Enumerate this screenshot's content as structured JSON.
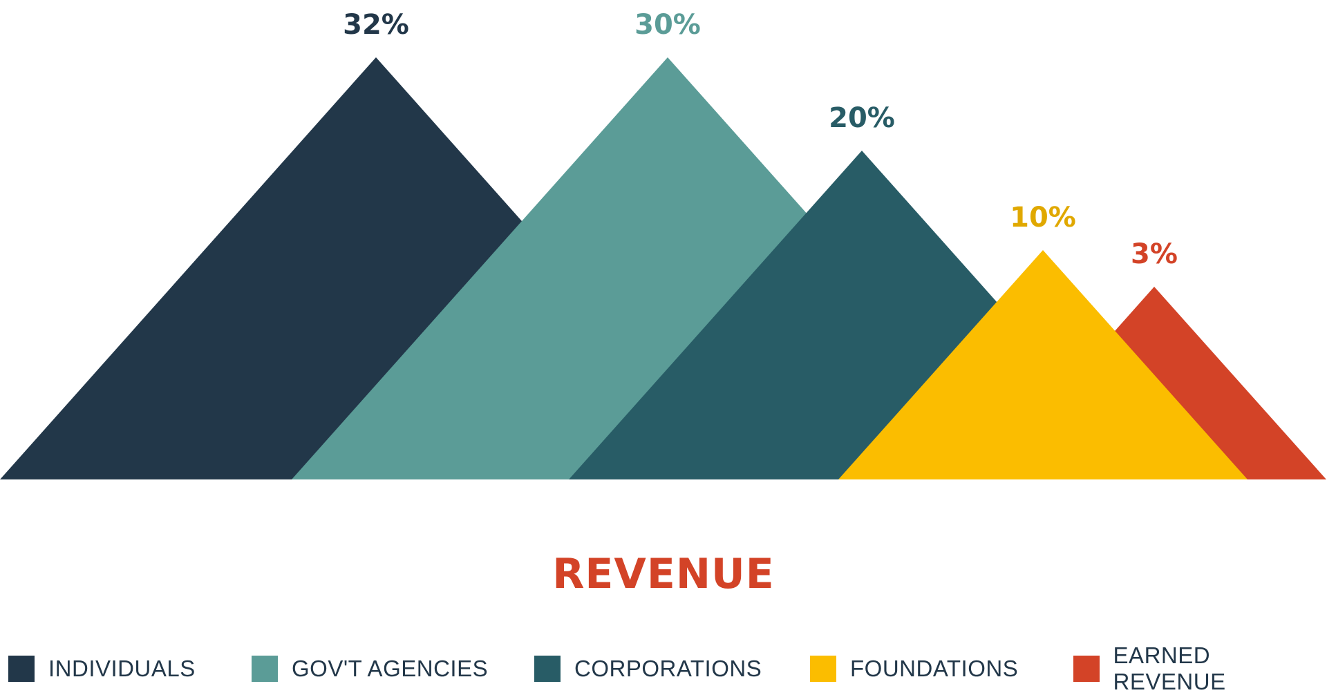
{
  "chart_data": {
    "type": "area",
    "title": "REVENUE",
    "categories": [
      "INDIVIDUALS",
      "GOV'T AGENCIES",
      "CORPORATIONS",
      "FOUNDATIONS",
      "EARNED REVENUE"
    ],
    "values": [
      32,
      30,
      20,
      10,
      3
    ],
    "labels": [
      "32%",
      "30%",
      "20%",
      "10%",
      "3%"
    ],
    "colors": [
      "#223749",
      "#5b9c97",
      "#285c66",
      "#fbbd00",
      "#d34327"
    ],
    "label_colors": [
      "#223749",
      "#5b9c97",
      "#285c66",
      "#e0a800",
      "#d34327"
    ],
    "legend_position": "bottom",
    "grid": false
  }
}
